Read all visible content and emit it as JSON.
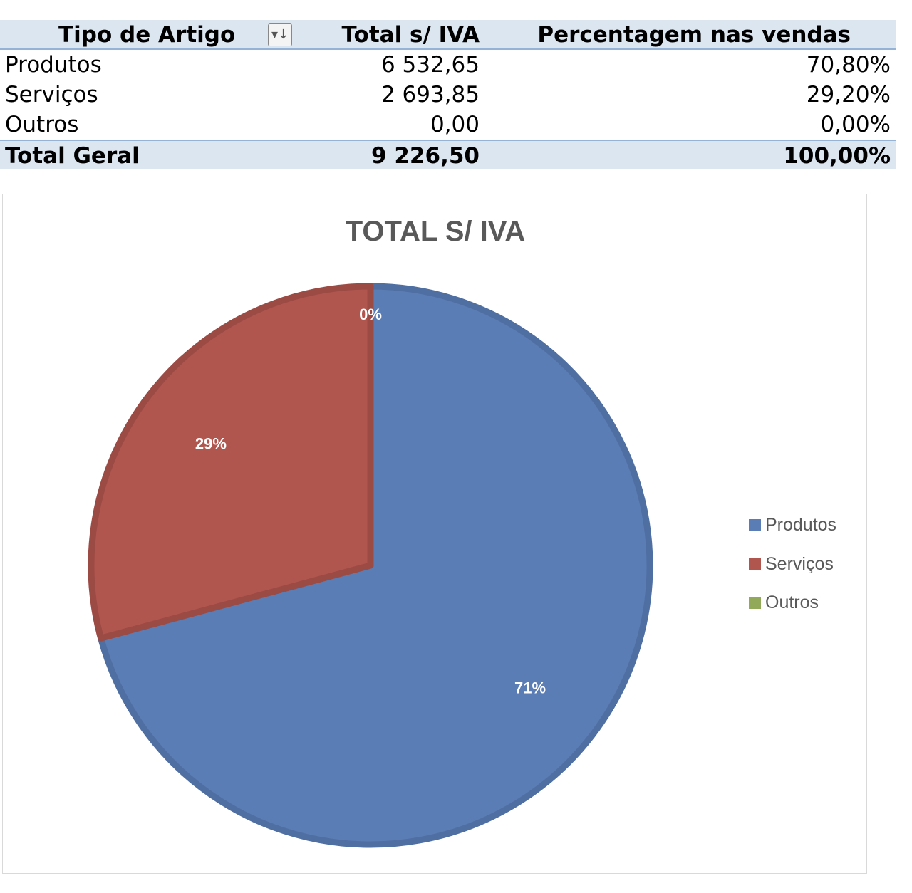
{
  "table": {
    "headers": {
      "type": "Tipo de Artigo",
      "total": "Total s/ IVA",
      "percent": "Percentagem nas vendas",
      "filter_icon": "sort-filter-icon",
      "filter_glyph": "▾↓"
    },
    "rows": [
      {
        "type": "Produtos",
        "total": "6 532,65",
        "percent": "70,80%"
      },
      {
        "type": "Serviços",
        "total": "2 693,85",
        "percent": "29,20%"
      },
      {
        "type": "Outros",
        "total": "0,00",
        "percent": "0,00%"
      }
    ],
    "grand_total": {
      "label": "Total Geral",
      "total": "9 226,50",
      "percent": "100,00%"
    }
  },
  "chart_data": {
    "type": "pie",
    "title": "TOTAL S/ IVA",
    "categories": [
      "Produtos",
      "Serviços",
      "Outros"
    ],
    "values": [
      6532.65,
      2693.85,
      0
    ],
    "data_labels": [
      "71%",
      "29%",
      "0%"
    ],
    "colors": [
      "#5a7db5",
      "#b0564f",
      "#93a95a"
    ],
    "legend_position": "right"
  }
}
